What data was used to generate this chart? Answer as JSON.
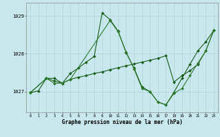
{
  "background_color": "#c8e8ee",
  "grid_color": "#aad4d8",
  "line_dark": "#1a5c1a",
  "line_mid": "#2d7a2d",
  "xlabel": "Graphe pression niveau de la mer (hPa)",
  "ylim": [
    1026.45,
    1029.35
  ],
  "xlim": [
    -0.5,
    23.5
  ],
  "yticks": [
    1027,
    1028,
    1029
  ],
  "xticks": [
    0,
    1,
    2,
    3,
    4,
    5,
    6,
    7,
    8,
    9,
    10,
    11,
    12,
    13,
    14,
    15,
    16,
    17,
    18,
    19,
    20,
    21,
    22,
    23
  ],
  "s1_x": [
    0,
    1,
    2,
    3,
    4,
    5,
    6,
    7,
    8,
    9,
    10,
    11,
    12,
    13,
    14,
    15,
    16,
    17,
    18,
    19,
    20,
    21,
    22,
    23
  ],
  "s1_y": [
    1026.97,
    1027.02,
    1027.35,
    1027.35,
    1027.22,
    1027.48,
    1027.62,
    1027.78,
    1027.93,
    1029.08,
    1028.9,
    1028.6,
    1028.03,
    1027.62,
    1027.12,
    1027.0,
    1026.72,
    1026.65,
    1026.98,
    1027.35,
    1027.72,
    1028.08,
    1028.32,
    1028.62
  ],
  "s2_x": [
    0,
    2,
    3,
    4,
    5,
    6,
    7,
    8,
    9,
    10,
    11,
    12,
    13,
    14,
    15,
    16,
    17,
    18,
    19,
    20,
    21,
    22,
    23
  ],
  "s2_y": [
    1026.97,
    1027.35,
    1027.28,
    1027.22,
    1027.32,
    1027.38,
    1027.42,
    1027.48,
    1027.52,
    1027.58,
    1027.63,
    1027.68,
    1027.73,
    1027.78,
    1027.83,
    1027.88,
    1027.95,
    1027.25,
    1027.42,
    1027.55,
    1027.72,
    1028.08,
    1028.62
  ],
  "s3_x": [
    0,
    2,
    3,
    4,
    5,
    10,
    11,
    12,
    13,
    14,
    15,
    16,
    17,
    18,
    19,
    20,
    21,
    22,
    23
  ],
  "s3_y": [
    1026.97,
    1027.35,
    1027.22,
    1027.22,
    1027.32,
    1028.88,
    1028.58,
    1028.05,
    1027.6,
    1027.08,
    1027.0,
    1026.72,
    1026.65,
    1026.95,
    1027.08,
    1027.42,
    1027.75,
    1028.08,
    1028.62
  ]
}
